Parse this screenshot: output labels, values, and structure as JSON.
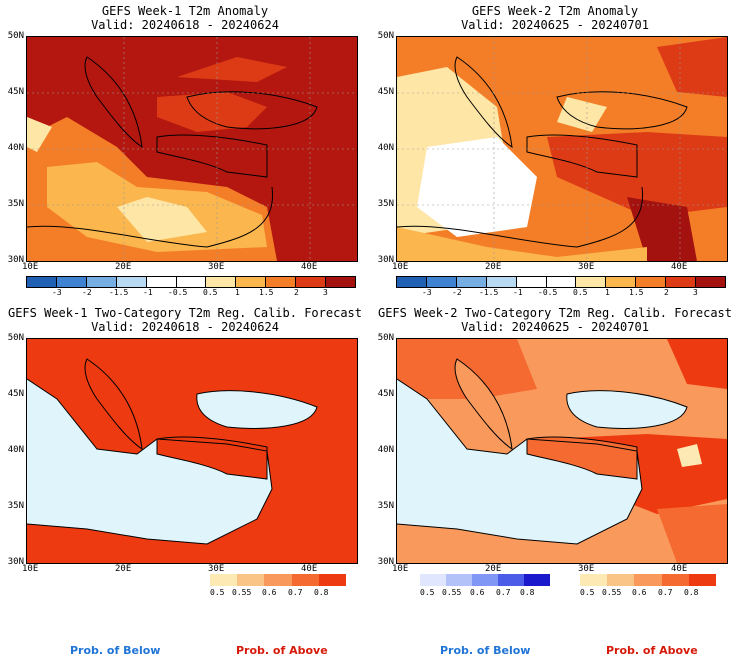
{
  "panels": [
    {
      "title_line1": "GEFS Week-1 T2m Anomaly",
      "title_line2": "Valid: 20240618 - 20240624",
      "type": "anomaly"
    },
    {
      "title_line1": "GEFS Week-2 T2m Anomaly",
      "title_line2": "Valid: 20240625 - 20240701",
      "type": "anomaly"
    },
    {
      "title_line1": "GEFS Week-1 Two-Category T2m Reg. Calib. Forecast",
      "title_line2": "Valid: 20240618 - 20240624",
      "type": "prob"
    },
    {
      "title_line1": "GEFS Week-2 Two-Category T2m Reg. Calib. Forecast",
      "title_line2": "Valid: 20240625 - 20240701",
      "type": "prob"
    }
  ],
  "axes": {
    "lat_labels": [
      "50N",
      "45N",
      "40N",
      "35N",
      "30N"
    ],
    "lon_labels": [
      "10E",
      "20E",
      "30E",
      "40E"
    ]
  },
  "anomaly_colorbar": {
    "labels": [
      "-3",
      "-2",
      "-1.5",
      "-1",
      "-0.5",
      "0.5",
      "1",
      "1.5",
      "2",
      "3"
    ],
    "colors": [
      "#1f5fb4",
      "#3f82d1",
      "#76aee3",
      "#b8d9f2",
      "#ffffff",
      "#ffffff",
      "#fde6a6",
      "#fbb64d",
      "#f47e27",
      "#dd3b16",
      "#a3120e"
    ]
  },
  "prob_below_colorbar": {
    "labels": [
      "0.5",
      "0.55",
      "0.6",
      "0.7",
      "0.8"
    ],
    "colors": [
      "#dfe6fd",
      "#b3c3fa",
      "#8097f5",
      "#4a5ce8",
      "#1a1acc"
    ]
  },
  "prob_above_colorbar": {
    "labels": [
      "0.5",
      "0.55",
      "0.6",
      "0.7",
      "0.8"
    ],
    "colors": [
      "#fde9b4",
      "#fbc487",
      "#f99a5c",
      "#f56a31",
      "#ee3a10"
    ]
  },
  "footer": {
    "below": "Prob. of Below",
    "above": "Prob. of Above",
    "below_color": "#1f74d6",
    "above_color": "#d61a0a"
  }
}
